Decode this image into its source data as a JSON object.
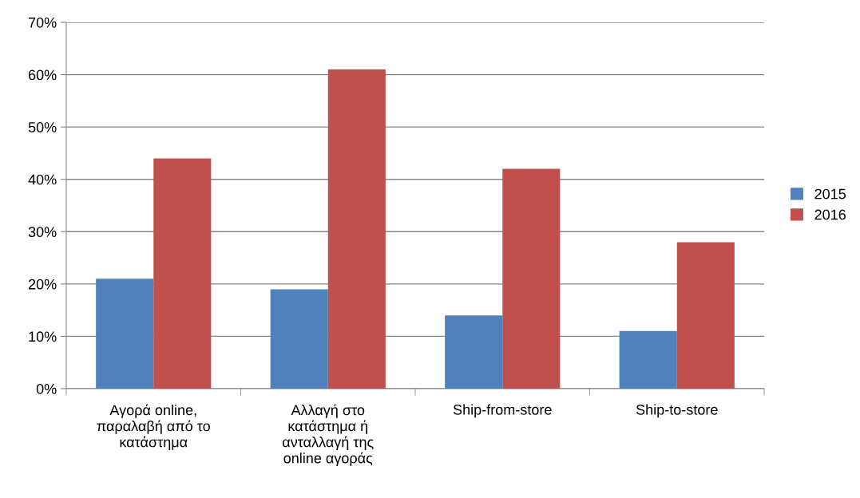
{
  "chart_data": {
    "type": "bar",
    "categories": [
      "Αγορά online,\nπαραλαβή από το\nκατάστημα",
      "Αλλαγή στο\nκατάστημα ή\nανταλλαγή της\nonline αγοράς",
      "Ship-from-store",
      "Ship-to-store"
    ],
    "series": [
      {
        "name": "2015",
        "color": "#4f81bd",
        "values": [
          21,
          19,
          14,
          11
        ]
      },
      {
        "name": "2016",
        "color": "#c0504d",
        "values": [
          44,
          61,
          42,
          28
        ]
      }
    ],
    "ylim": [
      0,
      70
    ],
    "yticks": [
      {
        "value": 0,
        "label": "0%"
      },
      {
        "value": 10,
        "label": "10%"
      },
      {
        "value": 20,
        "label": "20%"
      },
      {
        "value": 30,
        "label": "30%"
      },
      {
        "value": 40,
        "label": "40%"
      },
      {
        "value": 50,
        "label": "50%"
      },
      {
        "value": 60,
        "label": "60%"
      },
      {
        "value": 70,
        "label": "70%"
      }
    ],
    "grid": "y",
    "legend": "right"
  }
}
